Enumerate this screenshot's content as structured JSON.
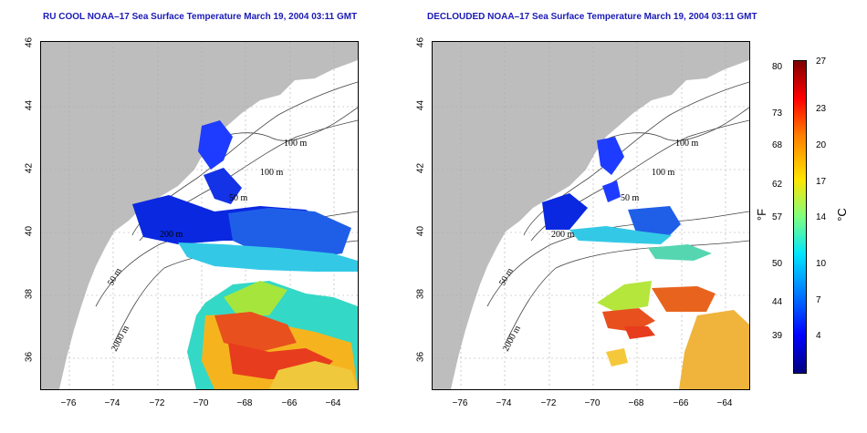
{
  "panels": [
    {
      "title": "RU COOL NOAA–17 Sea Surface Temperature March 19, 2004 03:11 GMT"
    },
    {
      "title": "DECLOUDED NOAA–17 Sea Surface Temperature March 19, 2004 03:11 GMT"
    }
  ],
  "axes": {
    "lat_ticks": [
      "46",
      "44",
      "42",
      "40",
      "38",
      "36"
    ],
    "lon_ticks": [
      "−76",
      "−74",
      "−72",
      "−70",
      "−68",
      "−66",
      "−64"
    ]
  },
  "contours": {
    "left": [
      "100 m",
      "100 m",
      "50 m",
      "200 m",
      "50 m",
      "2000 m"
    ],
    "right": [
      "100 m",
      "100 m",
      "50 m",
      "200 m",
      "50 m",
      "2000 m"
    ]
  },
  "colorbar": {
    "fahrenheit_label": "°F",
    "celsius_label": "°C",
    "fahrenheit": [
      "80",
      "73",
      "68",
      "62",
      "57",
      "50",
      "44",
      "39"
    ],
    "celsius": [
      "27",
      "23",
      "20",
      "17",
      "14",
      "10",
      "7",
      "4"
    ]
  },
  "colors": {
    "land": "#bdbdbd",
    "title": "#1a1ab8"
  }
}
